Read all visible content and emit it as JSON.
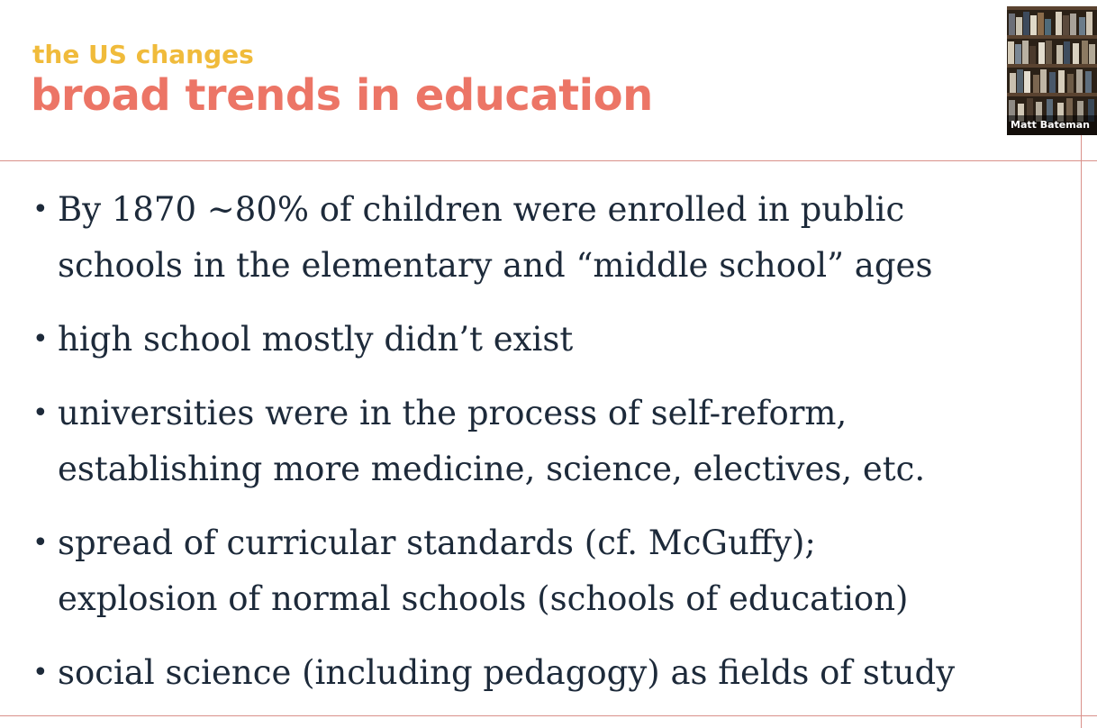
{
  "slide": {
    "subtitle": "the US changes",
    "title": "broad trends in education",
    "bullets": [
      {
        "lines": [
          "By 1870 ~80% of children were enrolled in public",
          "schools in the elementary and “middle school” ages"
        ]
      },
      {
        "lines": [
          "high school mostly didn’t exist"
        ]
      },
      {
        "lines": [
          "universities were in the process of self-reform,",
          "establishing more medicine, science, electives, etc."
        ]
      },
      {
        "lines": [
          "spread of curricular standards (cf. McGuffy);",
          "explosion of normal schools (schools of education)"
        ]
      },
      {
        "lines": [
          "social science (including pedagogy) as fields of study"
        ]
      }
    ],
    "bullet_symbol": "•"
  },
  "video": {
    "participant_name": "Matt Bateman"
  },
  "colors": {
    "subtitle": "#f0bb3b",
    "title": "#ec7566",
    "body_text": "#1d2a3a",
    "rules": "#d9908a"
  }
}
